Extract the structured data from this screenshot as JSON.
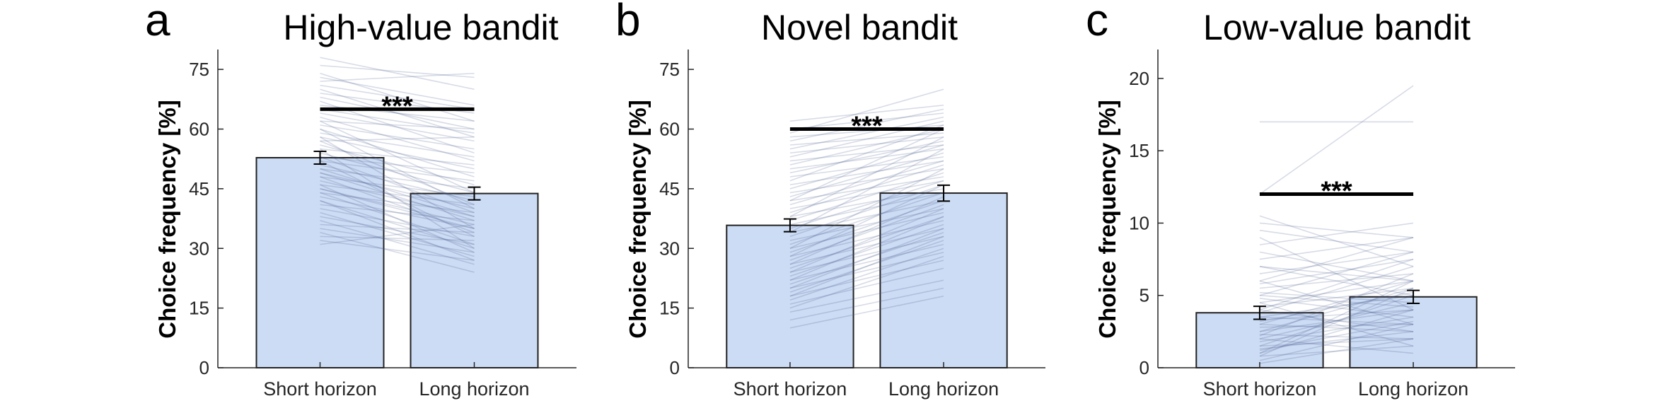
{
  "colors": {
    "bar_fill": "#ccdcf4",
    "bar_stroke": "#222222",
    "subject_line": "#4a5a8c",
    "axis": "#262626"
  },
  "chart_data": [
    {
      "type": "bar",
      "panel_letter": "a",
      "title": "High-value bandit",
      "ylabel": "Choice frequency [%]",
      "xlabel": "",
      "categories": [
        "Short horizon",
        "Long horizon"
      ],
      "values": [
        52.8,
        43.8
      ],
      "errors": [
        1.6,
        1.6
      ],
      "ylim": [
        0,
        80
      ],
      "yticks": [
        0,
        15,
        30,
        45,
        60,
        75
      ],
      "significance": {
        "label": "***",
        "y": 65
      },
      "subject_pairs": [
        [
          78,
          70
        ],
        [
          76,
          73
        ],
        [
          74,
          62
        ],
        [
          73,
          66
        ],
        [
          72,
          74
        ],
        [
          71,
          65
        ],
        [
          70,
          58
        ],
        [
          69,
          64
        ],
        [
          68,
          60
        ],
        [
          67,
          54
        ],
        [
          66,
          62
        ],
        [
          65,
          59
        ],
        [
          64,
          57
        ],
        [
          63,
          52
        ],
        [
          62,
          60
        ],
        [
          61,
          55
        ],
        [
          60,
          48
        ],
        [
          59,
          53
        ],
        [
          58,
          50
        ],
        [
          57,
          58
        ],
        [
          56,
          46
        ],
        [
          55,
          51
        ],
        [
          54,
          44
        ],
        [
          53,
          49
        ],
        [
          52,
          47
        ],
        [
          51,
          42
        ],
        [
          50,
          45
        ],
        [
          49,
          40
        ],
        [
          48,
          43
        ],
        [
          47,
          38
        ],
        [
          46,
          41
        ],
        [
          45,
          36
        ],
        [
          44,
          39
        ],
        [
          43,
          35
        ],
        [
          42,
          30
        ],
        [
          41,
          37
        ],
        [
          40,
          33
        ],
        [
          39,
          28
        ],
        [
          38,
          31
        ],
        [
          37,
          26
        ],
        [
          36,
          34
        ],
        [
          35,
          29
        ],
        [
          34,
          24
        ],
        [
          33,
          32
        ],
        [
          32,
          27
        ],
        [
          31,
          36
        ],
        [
          60,
          40
        ],
        [
          58,
          35
        ],
        [
          55,
          30
        ],
        [
          52,
          33
        ],
        [
          50,
          38
        ],
        [
          48,
          34
        ],
        [
          46,
          29
        ],
        [
          44,
          31
        ],
        [
          42,
          27
        ],
        [
          62,
          44
        ],
        [
          57,
          41
        ],
        [
          53,
          39
        ],
        [
          49,
          37
        ],
        [
          45,
          35
        ]
      ]
    },
    {
      "type": "bar",
      "panel_letter": "b",
      "title": "Novel bandit",
      "ylabel": "Choice frequency [%]",
      "xlabel": "",
      "categories": [
        "Short horizon",
        "Long horizon"
      ],
      "values": [
        35.8,
        43.9
      ],
      "errors": [
        1.6,
        2.0
      ],
      "ylim": [
        0,
        80
      ],
      "yticks": [
        0,
        15,
        30,
        45,
        60,
        75
      ],
      "significance": {
        "label": "***",
        "y": 60
      },
      "subject_pairs": [
        [
          62,
          66
        ],
        [
          60,
          64
        ],
        [
          59,
          70
        ],
        [
          58,
          61
        ],
        [
          57,
          65
        ],
        [
          56,
          59
        ],
        [
          55,
          63
        ],
        [
          54,
          58
        ],
        [
          53,
          62
        ],
        [
          52,
          56
        ],
        [
          51,
          60
        ],
        [
          50,
          55
        ],
        [
          49,
          57
        ],
        [
          48,
          53
        ],
        [
          47,
          61
        ],
        [
          46,
          52
        ],
        [
          45,
          56
        ],
        [
          44,
          50
        ],
        [
          43,
          54
        ],
        [
          42,
          48
        ],
        [
          41,
          52
        ],
        [
          40,
          47
        ],
        [
          39,
          51
        ],
        [
          38,
          45
        ],
        [
          37,
          49
        ],
        [
          36,
          44
        ],
        [
          35,
          47
        ],
        [
          34,
          42
        ],
        [
          33,
          46
        ],
        [
          32,
          40
        ],
        [
          31,
          44
        ],
        [
          30,
          39
        ],
        [
          29,
          42
        ],
        [
          28,
          37
        ],
        [
          27,
          41
        ],
        [
          26,
          35
        ],
        [
          25,
          38
        ],
        [
          24,
          33
        ],
        [
          23,
          36
        ],
        [
          22,
          31
        ],
        [
          21,
          34
        ],
        [
          20,
          29
        ],
        [
          19,
          32
        ],
        [
          18,
          27
        ],
        [
          17,
          30
        ],
        [
          16,
          25
        ],
        [
          15,
          28
        ],
        [
          14,
          22
        ],
        [
          12,
          20
        ],
        [
          10,
          18
        ],
        [
          30,
          50
        ],
        [
          28,
          46
        ],
        [
          26,
          43
        ],
        [
          24,
          40
        ],
        [
          34,
          55
        ],
        [
          38,
          58
        ],
        [
          42,
          60
        ],
        [
          22,
          38
        ],
        [
          20,
          35
        ],
        [
          18,
          33
        ]
      ]
    },
    {
      "type": "bar",
      "panel_letter": "c",
      "title": "Low-value bandit",
      "ylabel": "Choice frequency [%]",
      "xlabel": "",
      "categories": [
        "Short horizon",
        "Long horizon"
      ],
      "values": [
        3.8,
        4.9
      ],
      "errors": [
        0.45,
        0.45
      ],
      "ylim": [
        0,
        22
      ],
      "yticks": [
        0,
        5,
        10,
        15,
        20
      ],
      "significance": {
        "label": "***",
        "y": 12
      },
      "subject_pairs": [
        [
          12,
          19.5
        ],
        [
          17,
          17
        ],
        [
          10.5,
          7
        ],
        [
          10,
          9
        ],
        [
          9.5,
          8
        ],
        [
          9,
          4
        ],
        [
          8.5,
          10
        ],
        [
          8,
          6
        ],
        [
          7.5,
          9
        ],
        [
          7,
          5
        ],
        [
          6.5,
          8
        ],
        [
          6,
          3
        ],
        [
          5.8,
          7.5
        ],
        [
          5.5,
          6.5
        ],
        [
          5.2,
          4.5
        ],
        [
          5,
          8
        ],
        [
          4.8,
          3.5
        ],
        [
          4.5,
          6
        ],
        [
          4.2,
          5.5
        ],
        [
          4,
          2.5
        ],
        [
          3.8,
          7
        ],
        [
          3.5,
          5
        ],
        [
          3.3,
          4
        ],
        [
          3,
          6
        ],
        [
          2.8,
          3
        ],
        [
          2.5,
          5.5
        ],
        [
          2.3,
          2
        ],
        [
          2,
          4.5
        ],
        [
          1.8,
          3.5
        ],
        [
          1.5,
          5
        ],
        [
          1.3,
          2.5
        ],
        [
          1,
          4
        ],
        [
          0.8,
          1.5
        ],
        [
          0.5,
          3
        ],
        [
          0.3,
          2
        ],
        [
          2,
          1
        ],
        [
          3,
          2.5
        ],
        [
          4,
          7.5
        ],
        [
          1,
          6
        ],
        [
          6,
          9
        ],
        [
          2.5,
          4
        ],
        [
          3.5,
          3
        ],
        [
          1.5,
          2
        ],
        [
          0.8,
          5.5
        ],
        [
          5,
          4.2
        ],
        [
          7,
          6
        ],
        [
          4.5,
          1.5
        ],
        [
          2.2,
          6.5
        ],
        [
          3.2,
          5.2
        ],
        [
          1.2,
          3.2
        ]
      ]
    }
  ]
}
